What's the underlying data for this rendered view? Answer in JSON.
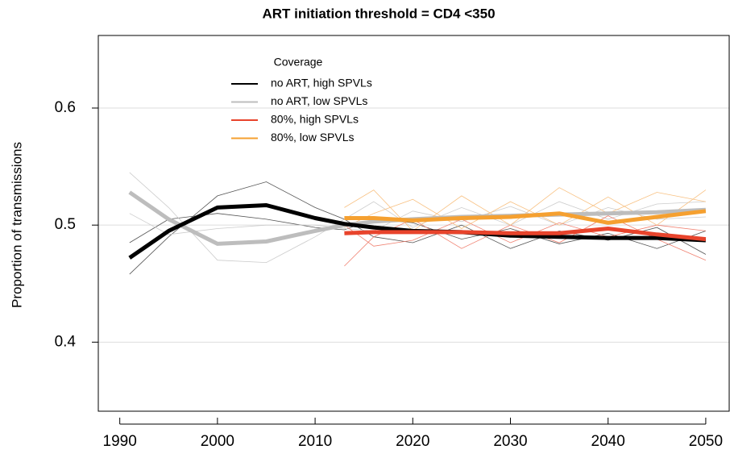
{
  "chart_data": {
    "type": "line",
    "title": "ART initiation threshold = CD4 <350",
    "y_label": "Proportion of transmissions",
    "legend_title": "Coverage",
    "legend": "top-left",
    "grid": true,
    "x": [
      1991,
      1995,
      2000,
      2005,
      2010,
      2013,
      2016,
      2020,
      2025,
      2030,
      2035,
      2040,
      2045,
      2050
    ],
    "xlim": [
      1987.8,
      2052.4
    ],
    "xticks": [
      1990,
      2000,
      2010,
      2020,
      2030,
      2040,
      2050
    ],
    "ylim": [
      0.341,
      0.662
    ],
    "yticks": [
      0.4,
      0.5,
      0.6
    ],
    "series": [
      {
        "name": "no ART, high SPVLs",
        "color": "#000000",
        "values": [
          0.472,
          0.495,
          0.515,
          0.517,
          0.506,
          0.501,
          0.498,
          0.495,
          0.494,
          0.491,
          0.49,
          0.489,
          0.489,
          0.487
        ]
      },
      {
        "name": "no ART, low SPVLs",
        "color": "#bdbdbd",
        "values": [
          0.528,
          0.505,
          0.484,
          0.486,
          0.495,
          0.5,
          0.503,
          0.505,
          0.507,
          0.508,
          0.509,
          0.51,
          0.511,
          0.513
        ]
      },
      {
        "name": "80%, high SPVLs",
        "color": "#e8442c",
        "values": [
          null,
          null,
          null,
          null,
          null,
          0.493,
          0.494,
          0.494,
          0.494,
          0.493,
          0.493,
          0.497,
          0.492,
          0.488
        ]
      },
      {
        "name": "80%, low SPVLs",
        "color": "#f5a030",
        "values": [
          null,
          null,
          null,
          null,
          null,
          0.506,
          0.506,
          0.504,
          0.506,
          0.507,
          0.51,
          0.502,
          0.507,
          0.512
        ]
      }
    ],
    "replicates": [
      {
        "color": "#555555",
        "values": [
          0.458,
          0.49,
          0.525,
          0.537,
          0.515,
          0.505,
          0.49,
          0.485,
          0.5,
          0.48,
          0.495,
          0.487,
          0.498,
          0.475
        ]
      },
      {
        "color": "#555555",
        "values": [
          0.485,
          0.505,
          0.51,
          0.505,
          0.498,
          0.496,
          0.505,
          0.502,
          0.488,
          0.497,
          0.484,
          0.493,
          0.48,
          0.495
        ]
      },
      {
        "color": "#cccccc",
        "values": [
          0.545,
          0.515,
          0.47,
          0.468,
          0.49,
          0.505,
          0.52,
          0.498,
          0.515,
          0.5,
          0.52,
          0.505,
          0.518,
          0.52
        ]
      },
      {
        "color": "#cccccc",
        "values": [
          0.51,
          0.492,
          0.497,
          0.5,
          0.5,
          0.497,
          0.495,
          0.512,
          0.503,
          0.516,
          0.5,
          0.515,
          0.505,
          0.507
        ]
      },
      {
        "color": "#f08070",
        "values": [
          null,
          null,
          null,
          null,
          null,
          0.465,
          0.49,
          0.505,
          0.48,
          0.5,
          0.485,
          0.508,
          0.488,
          0.47
        ]
      },
      {
        "color": "#f08070",
        "values": [
          null,
          null,
          null,
          null,
          null,
          0.5,
          0.482,
          0.487,
          0.505,
          0.485,
          0.502,
          0.49,
          0.5,
          0.495
        ]
      },
      {
        "color": "#f8c080",
        "values": [
          null,
          null,
          null,
          null,
          null,
          0.515,
          0.53,
          0.495,
          0.525,
          0.5,
          0.532,
          0.51,
          0.528,
          0.52
        ]
      },
      {
        "color": "#f8c080",
        "values": [
          null,
          null,
          null,
          null,
          null,
          0.498,
          0.51,
          0.522,
          0.497,
          0.52,
          0.5,
          0.524,
          0.5,
          0.53
        ]
      }
    ]
  }
}
